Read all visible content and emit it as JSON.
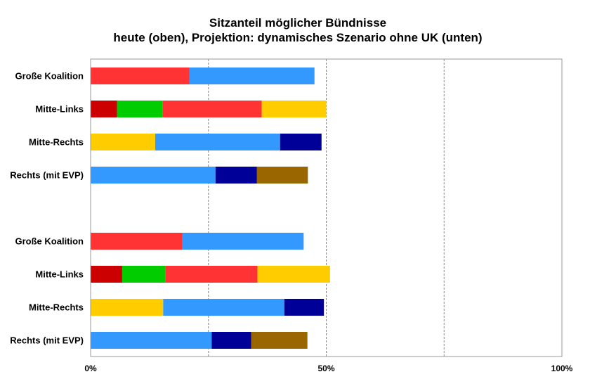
{
  "chart_data": {
    "type": "bar",
    "orientation": "horizontal",
    "stacked": true,
    "title": [
      "Sitzanteil möglicher Bündnisse",
      "heute (oben), Projektion: dynamisches Szenario ohne UK (unten)"
    ],
    "xlim": [
      0,
      100
    ],
    "x_ticks": [
      {
        "value": 0,
        "label": "0%"
      },
      {
        "value": 50,
        "label": "50%"
      },
      {
        "value": 100,
        "label": "100%"
      }
    ],
    "gridlines": [
      25,
      50,
      75
    ],
    "groups": [
      {
        "name": "heute",
        "rows": [
          {
            "label": "Große Koalition",
            "segments": [
              {
                "value": 21.0,
                "color": "#ff3333"
              },
              {
                "value": 26.5,
                "color": "#3399ff"
              }
            ]
          },
          {
            "label": "Mitte-Links",
            "segments": [
              {
                "value": 5.6,
                "color": "#cc0000"
              },
              {
                "value": 9.7,
                "color": "#00cc00"
              },
              {
                "value": 21.0,
                "color": "#ff3333"
              },
              {
                "value": 13.7,
                "color": "#ffcc00"
              }
            ]
          },
          {
            "label": "Mitte-Rechts",
            "segments": [
              {
                "value": 13.7,
                "color": "#ffcc00"
              },
              {
                "value": 26.5,
                "color": "#3399ff"
              },
              {
                "value": 8.8,
                "color": "#000099"
              }
            ]
          },
          {
            "label": "Rechts (mit EVP)",
            "segments": [
              {
                "value": 26.5,
                "color": "#3399ff"
              },
              {
                "value": 8.8,
                "color": "#000099"
              },
              {
                "value": 10.8,
                "color": "#996600"
              }
            ]
          }
        ]
      },
      {
        "name": "Projektion",
        "rows": [
          {
            "label": "Große Koalition",
            "segments": [
              {
                "value": 19.5,
                "color": "#ff3333"
              },
              {
                "value": 25.7,
                "color": "#3399ff"
              }
            ]
          },
          {
            "label": "Mitte-Links",
            "segments": [
              {
                "value": 6.7,
                "color": "#cc0000"
              },
              {
                "value": 9.2,
                "color": "#00cc00"
              },
              {
                "value": 19.5,
                "color": "#ff3333"
              },
              {
                "value": 15.4,
                "color": "#ffcc00"
              }
            ]
          },
          {
            "label": "Mitte-Rechts",
            "segments": [
              {
                "value": 15.4,
                "color": "#ffcc00"
              },
              {
                "value": 25.7,
                "color": "#3399ff"
              },
              {
                "value": 8.4,
                "color": "#000099"
              }
            ]
          },
          {
            "label": "Rechts (mit EVP)",
            "segments": [
              {
                "value": 25.7,
                "color": "#3399ff"
              },
              {
                "value": 8.4,
                "color": "#000099"
              },
              {
                "value": 11.9,
                "color": "#996600"
              }
            ]
          }
        ]
      }
    ]
  }
}
